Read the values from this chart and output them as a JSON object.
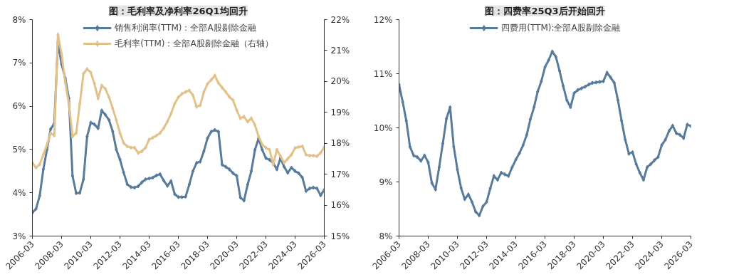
{
  "chart_data": [
    {
      "type": "line",
      "title": "图：毛利率及净利率26Q1均回升",
      "legend": "top",
      "grid": false,
      "marker": "diamond",
      "line_style": "solid",
      "categories": [
        "2006-03",
        null,
        null,
        null,
        null,
        null,
        null,
        null,
        "2008-03",
        null,
        null,
        null,
        null,
        null,
        null,
        null,
        "2010-03",
        null,
        null,
        null,
        null,
        null,
        null,
        null,
        "2012-03",
        null,
        null,
        null,
        null,
        null,
        null,
        null,
        "2014-03",
        null,
        null,
        null,
        null,
        null,
        null,
        null,
        "2016-03",
        null,
        null,
        null,
        null,
        null,
        null,
        null,
        "2018-03",
        null,
        null,
        null,
        null,
        null,
        null,
        null,
        "2020-03",
        null,
        null,
        null,
        null,
        null,
        null,
        null,
        "2022-03",
        null,
        null,
        null,
        null,
        null,
        null,
        null,
        "2024-03",
        null,
        null,
        null,
        null,
        null,
        null,
        null,
        "2026-03"
      ],
      "ylim": [
        3,
        8
      ],
      "yticks": [
        {
          "value": 3,
          "label": "3%"
        },
        {
          "value": 4,
          "label": "4%"
        },
        {
          "value": 5,
          "label": "5%"
        },
        {
          "value": 6,
          "label": "6%"
        },
        {
          "value": 7,
          "label": "7%"
        },
        {
          "value": 8,
          "label": "8%"
        }
      ],
      "y2lim": [
        15,
        22
      ],
      "y2ticks": [
        {
          "value": 15,
          "label": "15%"
        },
        {
          "value": 16,
          "label": "16%"
        },
        {
          "value": 17,
          "label": "17%"
        },
        {
          "value": 18,
          "label": "18%"
        },
        {
          "value": 19,
          "label": "19%"
        },
        {
          "value": 20,
          "label": "20%"
        },
        {
          "value": 21,
          "label": "21%"
        },
        {
          "value": 22,
          "label": "22%"
        }
      ],
      "series": [
        {
          "name": "销售利润率(TTM)：全部A股剔除金融",
          "color": "#587b9c",
          "values": [
            3.54,
            3.63,
            3.93,
            4.54,
            5.0,
            5.47,
            5.6,
            7.47,
            6.97,
            6.65,
            6.18,
            4.39,
            3.99,
            4.0,
            4.31,
            5.3,
            5.62,
            5.58,
            5.49,
            5.9,
            5.8,
            5.68,
            5.42,
            5.0,
            4.77,
            4.47,
            4.2,
            4.13,
            4.12,
            4.15,
            4.24,
            4.31,
            4.33,
            4.35,
            4.4,
            4.43,
            4.28,
            4.16,
            4.27,
            3.97,
            3.9,
            3.9,
            3.91,
            4.19,
            4.5,
            4.69,
            4.72,
            4.96,
            5.26,
            5.41,
            5.45,
            5.41,
            4.65,
            4.6,
            4.54,
            4.45,
            4.39,
            3.89,
            3.82,
            4.19,
            4.5,
            4.99,
            5.26,
            4.99,
            4.8,
            4.76,
            4.69,
            4.54,
            4.8,
            4.6,
            4.46,
            4.58,
            4.5,
            4.45,
            4.35,
            4.04,
            4.1,
            4.12,
            4.1,
            3.94,
            4.07
          ]
        },
        {
          "name": "毛利率(TTM)：全部A股剔除金融（右轴）",
          "color": "#e2c18a",
          "axis": "y2",
          "values": [
            17.37,
            17.21,
            17.32,
            17.63,
            17.95,
            18.33,
            18.25,
            21.52,
            20.88,
            19.98,
            19.28,
            18.22,
            18.33,
            19.28,
            20.25,
            20.4,
            20.29,
            19.93,
            19.45,
            19.87,
            19.76,
            19.49,
            19.13,
            18.75,
            18.33,
            18.01,
            17.9,
            17.86,
            17.86,
            17.69,
            17.74,
            17.86,
            18.12,
            18.18,
            18.25,
            18.33,
            18.49,
            18.7,
            18.96,
            19.28,
            19.49,
            19.6,
            19.66,
            19.71,
            19.55,
            19.18,
            19.23,
            19.66,
            19.92,
            20.05,
            20.19,
            19.95,
            19.8,
            19.66,
            19.5,
            19.39,
            19.07,
            18.81,
            18.86,
            18.7,
            18.81,
            18.59,
            18.22,
            17.96,
            17.85,
            17.79,
            17.31,
            17.79,
            17.58,
            17.37,
            17.5,
            17.63,
            17.85,
            17.88,
            17.9,
            17.63,
            17.6,
            17.6,
            17.58,
            17.69,
            17.88
          ]
        }
      ]
    },
    {
      "type": "line",
      "title": "图：四费率25Q3后开始回升",
      "legend": "top",
      "grid": false,
      "marker": "diamond",
      "line_style": "solid",
      "categories": [
        "2006-03",
        null,
        null,
        null,
        null,
        null,
        null,
        null,
        "2008-03",
        null,
        null,
        null,
        null,
        null,
        null,
        null,
        "2010-03",
        null,
        null,
        null,
        null,
        null,
        null,
        null,
        "2012-03",
        null,
        null,
        null,
        null,
        null,
        null,
        null,
        "2014-03",
        null,
        null,
        null,
        null,
        null,
        null,
        null,
        "2016-03",
        null,
        null,
        null,
        null,
        null,
        null,
        null,
        "2018-03",
        null,
        null,
        null,
        null,
        null,
        null,
        null,
        "2020-03",
        null,
        null,
        null,
        null,
        null,
        null,
        null,
        "2022-03",
        null,
        null,
        null,
        null,
        null,
        null,
        null,
        "2024-03",
        null,
        null,
        null,
        null,
        null,
        null,
        null,
        "2026-03"
      ],
      "ylim": [
        8,
        12
      ],
      "yticks": [
        {
          "value": 8,
          "label": "8%"
        },
        {
          "value": 9,
          "label": "9%"
        },
        {
          "value": 10,
          "label": "10%"
        },
        {
          "value": 11,
          "label": "11%"
        },
        {
          "value": 12,
          "label": "12%"
        }
      ],
      "series": [
        {
          "name": "四费用(TTM):全部A股剔除金融",
          "color": "#587b9c",
          "values": [
            10.8,
            10.48,
            10.13,
            9.65,
            9.49,
            9.46,
            9.39,
            9.49,
            9.36,
            8.98,
            8.86,
            9.27,
            9.71,
            10.17,
            10.38,
            9.65,
            9.23,
            8.89,
            8.68,
            8.77,
            8.63,
            8.45,
            8.38,
            8.55,
            8.63,
            8.88,
            9.11,
            9.04,
            9.17,
            9.14,
            9.11,
            9.27,
            9.41,
            9.53,
            9.68,
            9.87,
            10.16,
            10.38,
            10.67,
            10.86,
            11.12,
            11.25,
            11.41,
            11.31,
            11.05,
            10.77,
            10.51,
            10.38,
            10.64,
            10.7,
            10.73,
            10.76,
            10.8,
            10.83,
            10.84,
            10.85,
            10.86,
            11.02,
            10.93,
            10.83,
            10.51,
            10.13,
            9.78,
            9.52,
            9.55,
            9.33,
            9.17,
            9.04,
            9.27,
            9.33,
            9.4,
            9.46,
            9.68,
            9.78,
            9.94,
            10.04,
            9.9,
            9.87,
            9.81,
            10.06,
            10.03
          ]
        }
      ]
    }
  ]
}
